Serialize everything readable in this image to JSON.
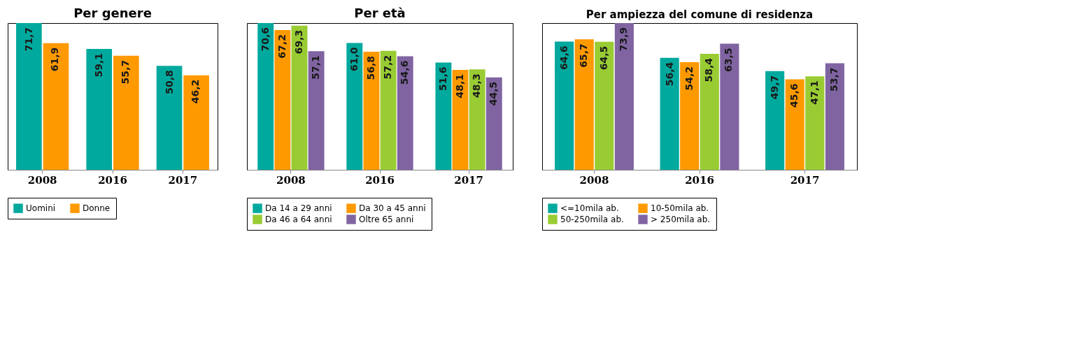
{
  "chart_data": [
    {
      "type": "bar",
      "title": "Per genere",
      "categories": [
        "2008",
        "2016",
        "2017"
      ],
      "legend": "bottom",
      "series": [
        {
          "name": "Uomini",
          "color": "#00a99d",
          "values": [
            71.7,
            59.1,
            50.8
          ],
          "value_labels": [
            "71,7",
            "59,1",
            "50,8"
          ]
        },
        {
          "name": "Donne",
          "color": "#ff9900",
          "values": [
            61.9,
            55.7,
            46.2
          ],
          "value_labels": [
            "61,9",
            "55,7",
            "46,2"
          ]
        }
      ]
    },
    {
      "type": "bar",
      "title": "Per età",
      "categories": [
        "2008",
        "2016",
        "2017"
      ],
      "legend": "bottom",
      "series": [
        {
          "name": "Da 14 a 29 anni",
          "color": "#00a99d",
          "values": [
            70.6,
            61.0,
            51.6
          ],
          "value_labels": [
            "70,6",
            "61,0",
            "51,6"
          ]
        },
        {
          "name": "Da 30 a 45 anni",
          "color": "#ff9900",
          "values": [
            67.2,
            56.8,
            48.1
          ],
          "value_labels": [
            "67,2",
            "56,8",
            "48,1"
          ]
        },
        {
          "name": "Da 46 a 64 anni",
          "color": "#99cc33",
          "values": [
            69.3,
            57.2,
            48.3
          ],
          "value_labels": [
            "69,3",
            "57,2",
            "48,3"
          ]
        },
        {
          "name": "Oltre 65 anni",
          "color": "#8064a2",
          "values": [
            57.1,
            54.6,
            44.5
          ],
          "value_labels": [
            "57,1",
            "54,6",
            "44,5"
          ]
        }
      ]
    },
    {
      "type": "bar",
      "title": "Per ampiezza del comune di residenza",
      "categories": [
        "2008",
        "2016",
        "2017"
      ],
      "legend": "bottom",
      "series": [
        {
          "name": "<=10mila ab.",
          "color": "#00a99d",
          "values": [
            64.6,
            56.4,
            49.7
          ],
          "value_labels": [
            "64,6",
            "56,4",
            "49,7"
          ]
        },
        {
          "name": "10-50mila ab.",
          "color": "#ff9900",
          "values": [
            65.7,
            54.2,
            45.6
          ],
          "value_labels": [
            "65,7",
            "54,2",
            "45,6"
          ]
        },
        {
          "name": "50-250mila ab.",
          "color": "#99cc33",
          "values": [
            64.5,
            58.4,
            47.1
          ],
          "value_labels": [
            "64,5",
            "58,4",
            "47,1"
          ]
        },
        {
          "name": "> 250mila ab.",
          "color": "#8064a2",
          "values": [
            73.9,
            63.5,
            53.7
          ],
          "value_labels": [
            "73,9",
            "63,5",
            "53,7"
          ]
        }
      ]
    }
  ]
}
